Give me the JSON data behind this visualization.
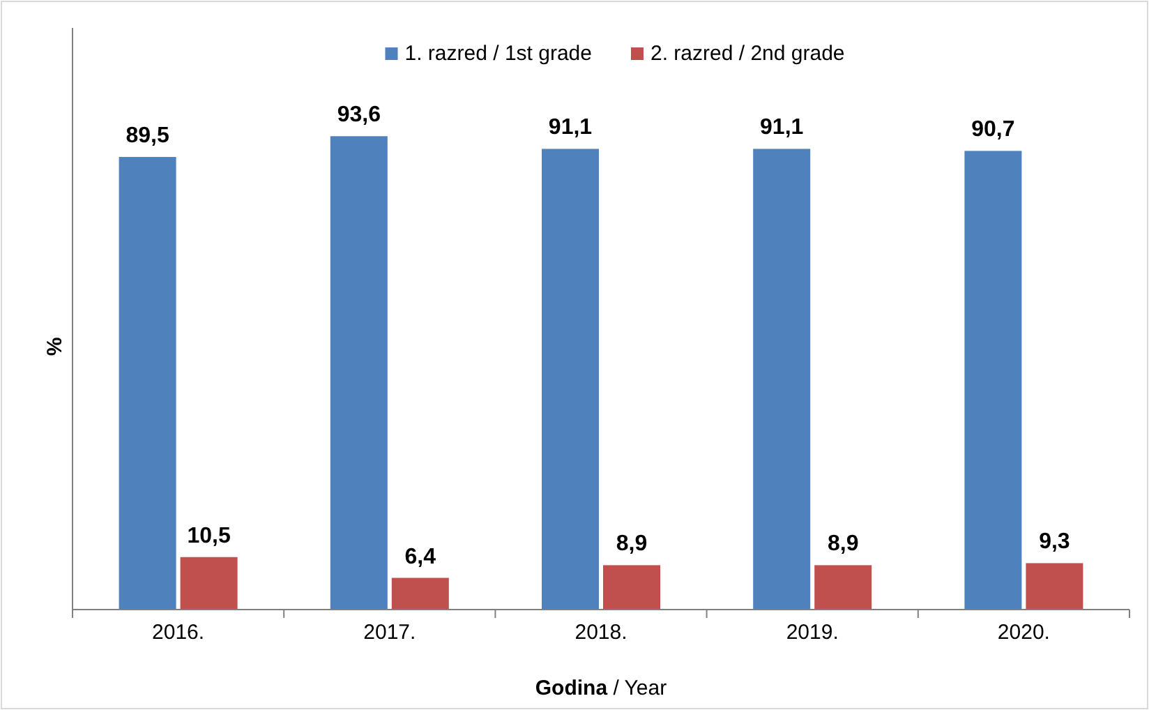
{
  "chart_data": {
    "type": "bar",
    "xlabel": "Godina / Year",
    "ylabel": "%",
    "categories": [
      "2016.",
      "2017.",
      "2018.",
      "2019.",
      "2020."
    ],
    "series": [
      {
        "name": "1. razred / 1st grade",
        "color": "#4f81bd",
        "values": [
          89.5,
          93.6,
          91.1,
          91.1,
          90.7
        ],
        "value_labels": [
          "89,5",
          "93,6",
          "91,1",
          "91,1",
          "90,7"
        ]
      },
      {
        "name": "2. razred / 2nd grade",
        "color": "#c0504d",
        "values": [
          10.5,
          6.4,
          8.9,
          8.9,
          9.3
        ],
        "value_labels": [
          "10,5",
          "6,4",
          "8,9",
          "8,9",
          "9,3"
        ]
      }
    ],
    "legend": "top",
    "tick_labels": "x"
  }
}
